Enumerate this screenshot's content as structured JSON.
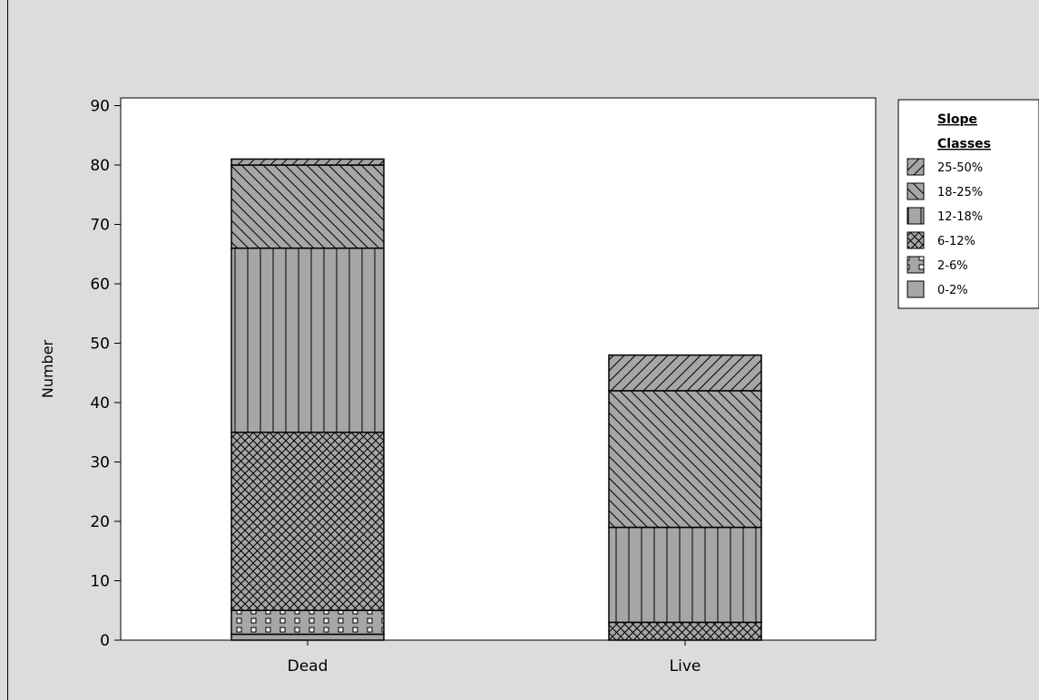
{
  "chart_data": {
    "type": "bar",
    "stacked": true,
    "categories": [
      "Dead",
      "Live"
    ],
    "series": [
      {
        "name": "0-2%",
        "values": [
          1,
          0
        ],
        "pattern": "plain"
      },
      {
        "name": "2-6%",
        "values": [
          4,
          0
        ],
        "pattern": "dots"
      },
      {
        "name": "6-12%",
        "values": [
          30,
          3
        ],
        "pattern": "crosshatch"
      },
      {
        "name": "12-18%",
        "values": [
          31,
          16
        ],
        "pattern": "vertical"
      },
      {
        "name": "18-25%",
        "values": [
          14,
          23
        ],
        "pattern": "backslash"
      },
      {
        "name": "25-50%",
        "values": [
          1,
          6
        ],
        "pattern": "slash"
      }
    ],
    "title": "",
    "xlabel": "",
    "ylabel": "Number",
    "ylim": [
      0,
      90
    ],
    "yticks": [
      0,
      10,
      20,
      30,
      40,
      50,
      60,
      70,
      80,
      90
    ],
    "legend": {
      "title_line1": "Slope",
      "title_line2": "Classes",
      "placement": "right"
    },
    "colors": {
      "bar_fill": "#a6a6a6",
      "plot_background": "#ffffff",
      "page_background": "#dcdcdc",
      "stroke": "#000000"
    }
  }
}
